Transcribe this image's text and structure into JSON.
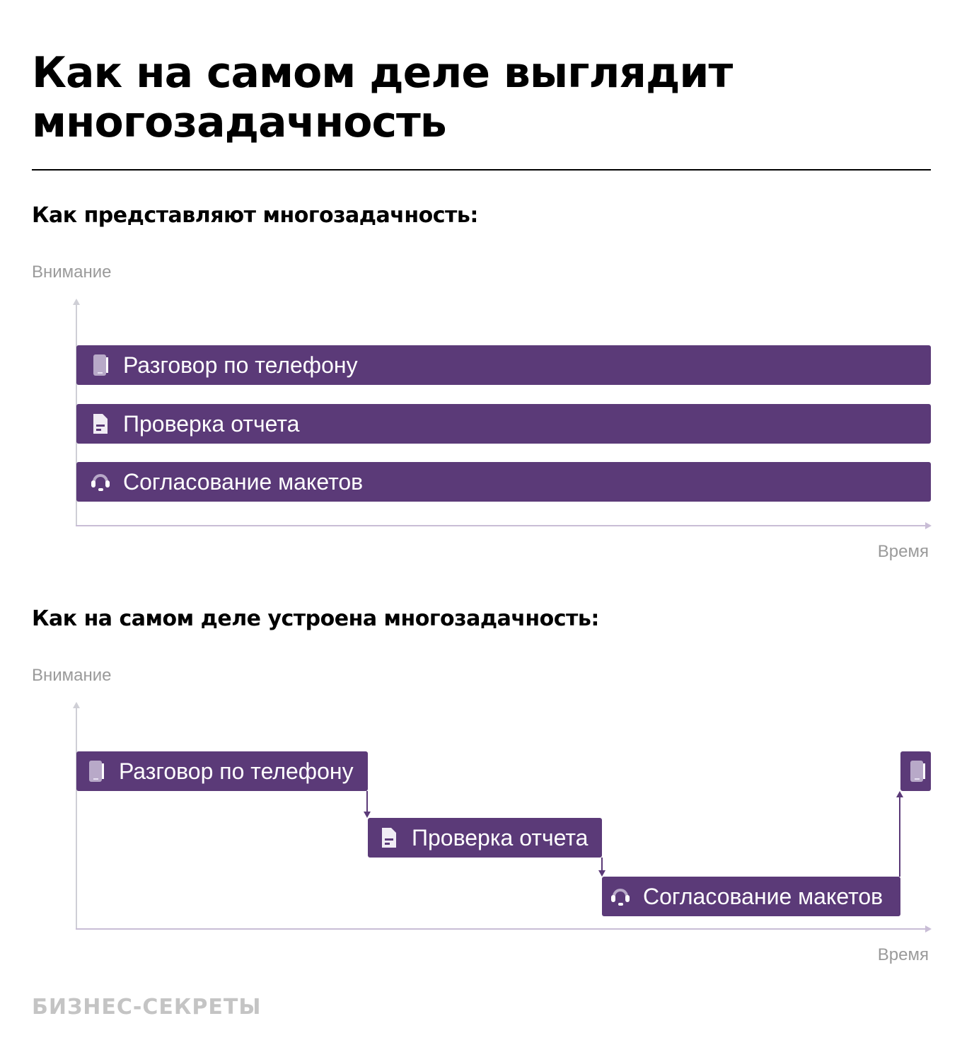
{
  "title": "Как на самом деле выглядит многозадачность",
  "section1": {
    "subtitle": "Как представляют многозадачность:",
    "y_label": "Внимание",
    "x_label": "Время",
    "tasks": [
      {
        "label": "Разговор по телефону",
        "icon": "phone-icon"
      },
      {
        "label": "Проверка отчета",
        "icon": "document-icon"
      },
      {
        "label": "Согласование макетов",
        "icon": "headset-icon"
      }
    ]
  },
  "section2": {
    "subtitle": "Как на самом деле устроена многозадачность:",
    "y_label": "Внимание",
    "x_label": "Время",
    "tasks": [
      {
        "label": "Разговор по телефону",
        "icon": "phone-icon"
      },
      {
        "label": "Проверка отчета",
        "icon": "document-icon"
      },
      {
        "label": "Согласование макетов",
        "icon": "headset-icon"
      }
    ],
    "return_icon": "phone-icon"
  },
  "footer": {
    "logo": "БИЗНЕС-СЕКРЕТЫ"
  },
  "colors": {
    "bar": "#5b3a78",
    "axis": "#c9bdd6",
    "muted": "#9a9a9a"
  }
}
